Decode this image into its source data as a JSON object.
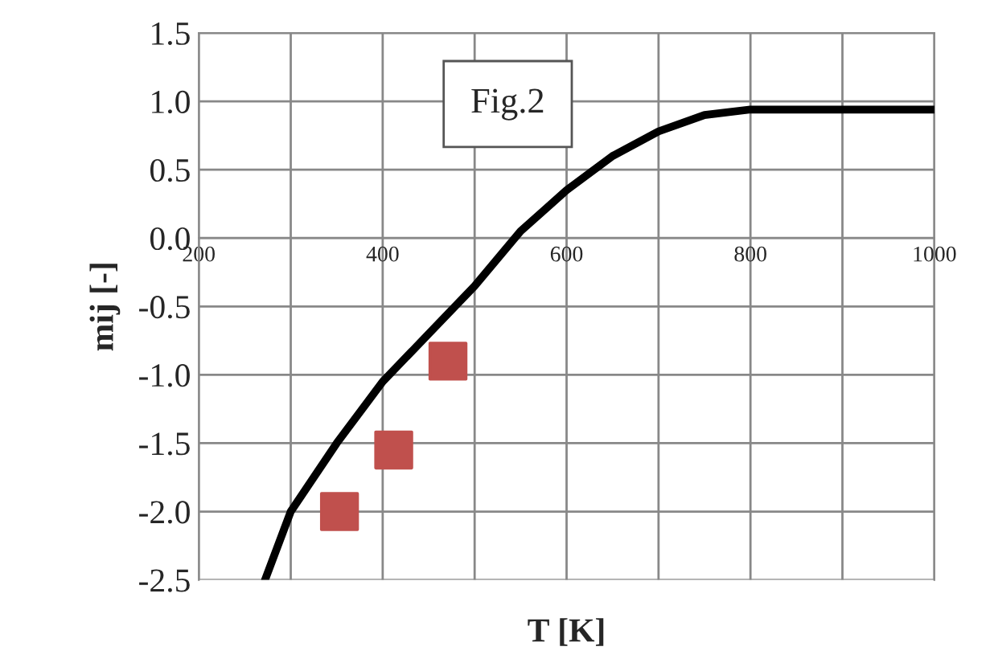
{
  "chart_data": {
    "type": "line",
    "xlabel": "T [K]",
    "ylabel": "mij [-]",
    "annotations": [
      "Fig.2"
    ],
    "xlim": [
      200,
      1000
    ],
    "xticks": [
      200,
      {
        "value": 300,
        "label": null
      },
      400,
      {
        "value": 500,
        "label": null
      },
      600,
      {
        "value": 700,
        "label": null
      },
      800,
      {
        "value": 900,
        "label": null
      },
      1000
    ],
    "ylim": [
      -2.5,
      1.5
    ],
    "yticks": [
      {
        "value": -2.5,
        "label": "-2.5"
      },
      {
        "value": -2.0,
        "label": "-2.0"
      },
      {
        "value": -1.5,
        "label": "-1.5"
      },
      {
        "value": -1.0,
        "label": "-1.0"
      },
      {
        "value": -0.5,
        "label": "-0.5"
      },
      {
        "value": 0.0,
        "label": "0.0"
      },
      {
        "value": 0.5,
        "label": "0.5"
      },
      {
        "value": 1.0,
        "label": "1.0"
      },
      {
        "value": 1.5,
        "label": "1.5"
      }
    ],
    "grid": true,
    "series": [
      {
        "color": "#000000",
        "marker": "none",
        "line_style": "solid",
        "x": [
          272,
          300,
          350,
          400,
          450,
          500,
          550,
          600,
          650,
          700,
          750,
          800,
          850,
          900,
          1000
        ],
        "values": [
          -2.5,
          -2.0,
          -1.5,
          -1.05,
          -0.7,
          -0.35,
          0.05,
          0.35,
          0.6,
          0.78,
          0.9,
          0.94,
          0.94,
          0.94,
          0.94
        ]
      },
      {
        "type": "scatter",
        "color": "#c0504d",
        "marker": "square",
        "x": [
          353,
          412,
          471
        ],
        "values": [
          -2.0,
          -1.55,
          -0.9
        ]
      }
    ]
  }
}
